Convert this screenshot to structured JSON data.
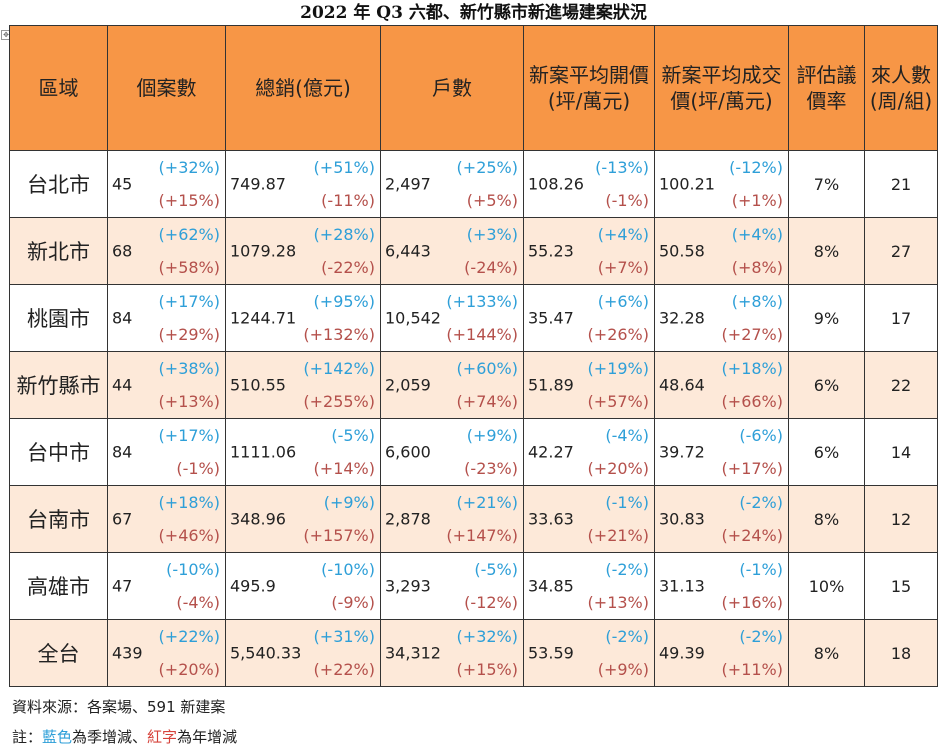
{
  "title": "2022 年 Q3 六都、新竹縣市新進場建案狀況",
  "anchor_icon": "table-anchor-icon",
  "colors": {
    "header_bg": "#f79646",
    "alt_row_bg": "#fde9d9",
    "qoq_color": "#2e9fd8",
    "yoy_color": "#b4504b"
  },
  "headers": [
    "區域",
    "個案數",
    "總銷(億元)",
    "戶數",
    "新案平均開價(坪/萬元)",
    "新案平均成交價(坪/萬元)",
    "評估議價率",
    "來人數(周/組)"
  ],
  "rows": [
    {
      "region": "台北市",
      "cases": {
        "v": "45",
        "q": "(+32%)",
        "y": "(+15%)"
      },
      "sales": {
        "v": "749.87",
        "q": "(+51%)",
        "y": "(-11%)"
      },
      "units": {
        "v": "2,497",
        "q": "(+25%)",
        "y": "(+5%)"
      },
      "open_price": {
        "v": "108.26",
        "q": "(-13%)",
        "y": "(-1%)"
      },
      "deal_price": {
        "v": "100.21",
        "q": "(-12%)",
        "y": "(+1%)"
      },
      "bargain": "7%",
      "visitors": "21"
    },
    {
      "region": "新北市",
      "cases": {
        "v": "68",
        "q": "(+62%)",
        "y": "(+58%)"
      },
      "sales": {
        "v": "1079.28",
        "q": "(+28%)",
        "y": "(-22%)"
      },
      "units": {
        "v": "6,443",
        "q": "(+3%)",
        "y": "(-24%)"
      },
      "open_price": {
        "v": "55.23",
        "q": "(+4%)",
        "y": "(+7%)"
      },
      "deal_price": {
        "v": "50.58",
        "q": "(+4%)",
        "y": "(+8%)"
      },
      "bargain": "8%",
      "visitors": "27"
    },
    {
      "region": "桃園市",
      "cases": {
        "v": "84",
        "q": "(+17%)",
        "y": "(+29%)"
      },
      "sales": {
        "v": "1244.71",
        "q": "(+95%)",
        "y": "(+132%)"
      },
      "units": {
        "v": "10,542",
        "q": "(+133%)",
        "y": "(+144%)"
      },
      "open_price": {
        "v": "35.47",
        "q": "(+6%)",
        "y": "(+26%)"
      },
      "deal_price": {
        "v": "32.28",
        "q": "(+8%)",
        "y": "(+27%)"
      },
      "bargain": "9%",
      "visitors": "17"
    },
    {
      "region": "新竹縣市",
      "cases": {
        "v": "44",
        "q": "(+38%)",
        "y": "(+13%)"
      },
      "sales": {
        "v": "510.55",
        "q": "(+142%)",
        "y": "(+255%)"
      },
      "units": {
        "v": "2,059",
        "q": "(+60%)",
        "y": "(+74%)"
      },
      "open_price": {
        "v": "51.89",
        "q": "(+19%)",
        "y": "(+57%)"
      },
      "deal_price": {
        "v": "48.64",
        "q": "(+18%)",
        "y": "(+66%)"
      },
      "bargain": "6%",
      "visitors": "22"
    },
    {
      "region": "台中市",
      "cases": {
        "v": "84",
        "q": "(+17%)",
        "y": "(-1%)"
      },
      "sales": {
        "v": "1111.06",
        "q": "(-5%)",
        "y": "(+14%)"
      },
      "units": {
        "v": "6,600",
        "q": "(+9%)",
        "y": "(-23%)"
      },
      "open_price": {
        "v": "42.27",
        "q": "(-4%)",
        "y": "(+20%)"
      },
      "deal_price": {
        "v": "39.72",
        "q": "(-6%)",
        "y": "(+17%)"
      },
      "bargain": "6%",
      "visitors": "14"
    },
    {
      "region": "台南市",
      "cases": {
        "v": "67",
        "q": "(+18%)",
        "y": "(+46%)"
      },
      "sales": {
        "v": "348.96",
        "q": "(+9%)",
        "y": "(+157%)"
      },
      "units": {
        "v": "2,878",
        "q": "(+21%)",
        "y": "(+147%)"
      },
      "open_price": {
        "v": "33.63",
        "q": "(-1%)",
        "y": "(+21%)"
      },
      "deal_price": {
        "v": "30.83",
        "q": "(-2%)",
        "y": "(+24%)"
      },
      "bargain": "8%",
      "visitors": "12"
    },
    {
      "region": "高雄市",
      "cases": {
        "v": "47",
        "q": "(-10%)",
        "y": "(-4%)"
      },
      "sales": {
        "v": "495.9",
        "q": "(-10%)",
        "y": "(-9%)"
      },
      "units": {
        "v": "3,293",
        "q": "(-5%)",
        "y": "(-12%)"
      },
      "open_price": {
        "v": "34.85",
        "q": "(-2%)",
        "y": "(+13%)"
      },
      "deal_price": {
        "v": "31.13",
        "q": "(-1%)",
        "y": "(+16%)"
      },
      "bargain": "10%",
      "visitors": "15"
    },
    {
      "region": "全台",
      "cases": {
        "v": "439",
        "q": "(+22%)",
        "y": "(+20%)"
      },
      "sales": {
        "v": "5,540.33",
        "q": "(+31%)",
        "y": "(+22%)"
      },
      "units": {
        "v": "34,312",
        "q": "(+32%)",
        "y": "(+15%)"
      },
      "open_price": {
        "v": "53.59",
        "q": "(-2%)",
        "y": "(+9%)"
      },
      "deal_price": {
        "v": "49.39",
        "q": "(-2%)",
        "y": "(+11%)"
      },
      "bargain": "8%",
      "visitors": "18"
    }
  ],
  "source": "資料來源：各案場、591 新建案",
  "note": {
    "prefix": "註：",
    "blue": "藍色",
    "mid": "為季增減、",
    "red": "紅字",
    "suffix": "為年增減"
  }
}
